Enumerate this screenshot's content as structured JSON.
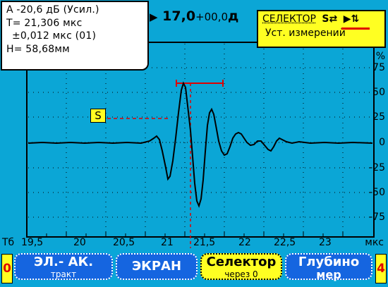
{
  "info": {
    "line1": "A -20,6 дБ (Усил.)",
    "line2": "T= 21,306 мкс",
    "line3": "±0,012 мкс (01)",
    "line4": "H= 58,68мм"
  },
  "gain": {
    "marker": "▶",
    "value": "17,0",
    "offset": "+00,0",
    "unit": "д"
  },
  "selector": {
    "title": "СЕЛЕКТОР",
    "icon1": "S⇄",
    "icon2": "▶⇅",
    "subtitle": "Уст. измерений"
  },
  "gate_label": "S",
  "y_ticks": [
    "75",
    "50",
    "25",
    "0",
    "-25",
    "-50",
    "-75"
  ],
  "y_top_partial": "%",
  "x_ticks": [
    "19,5",
    "20",
    "20,5",
    "21",
    "21,5",
    "22",
    "22,5",
    "23"
  ],
  "x_prefix": "Тб",
  "x_unit": "мкс",
  "buttons": {
    "left_num": "0",
    "right_num": "4",
    "b1_main": "ЭЛ.- АК.",
    "b1_sub": "тракт",
    "b2_main": "ЭКРАН",
    "b3_main": "Селектор",
    "b3_sub": "через 0",
    "b4_main": "Глубино",
    "b4_sub": "мер"
  },
  "colors": {
    "background": "#0ba6d6",
    "accent_yellow": "#ffff22",
    "button_blue": "#1565e0",
    "marker_red": "#e00000"
  }
}
